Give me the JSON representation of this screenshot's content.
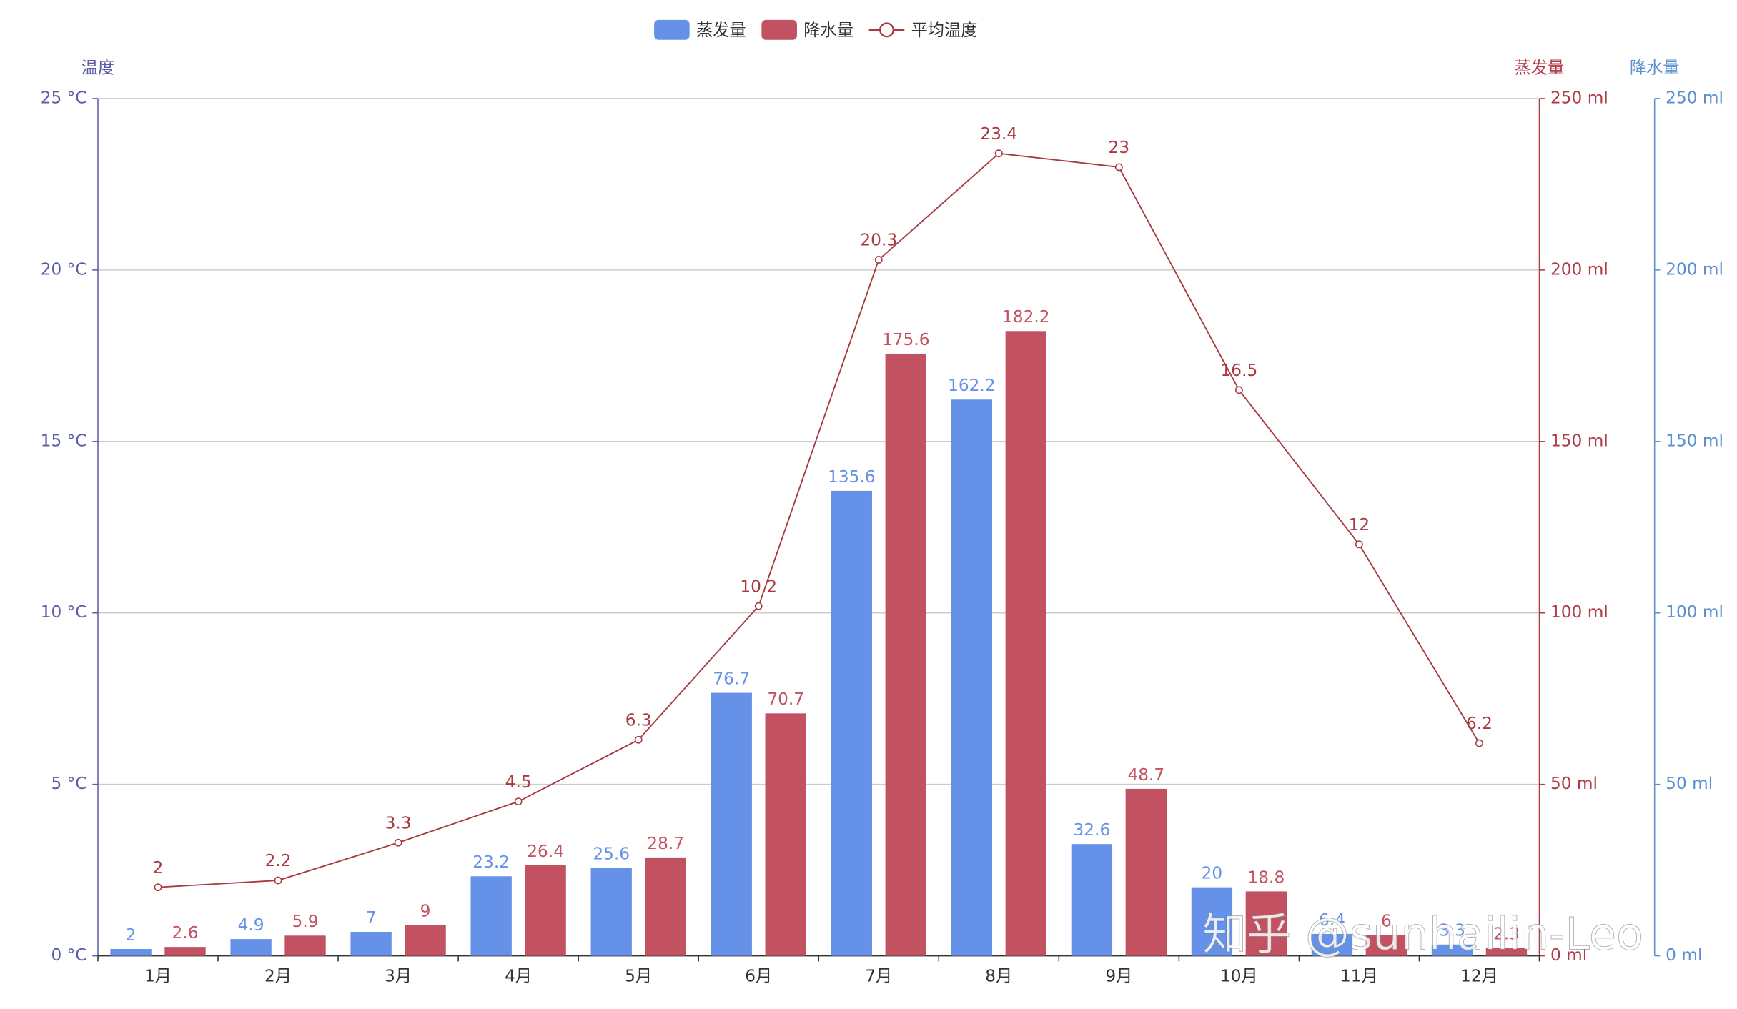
{
  "chart_data": {
    "type": "bar-line",
    "categories": [
      "1月",
      "2月",
      "3月",
      "4月",
      "5月",
      "6月",
      "7月",
      "8月",
      "9月",
      "10月",
      "11月",
      "12月"
    ],
    "series": [
      {
        "name": "蒸发量",
        "type": "bar",
        "color": "#6592e8",
        "axis": "y2",
        "values": [
          2,
          4.9,
          7,
          23.2,
          25.6,
          76.7,
          135.6,
          162.2,
          32.6,
          20,
          6.4,
          3.3
        ]
      },
      {
        "name": "降水量",
        "type": "bar",
        "color": "#c25262",
        "axis": "y2",
        "values": [
          2.6,
          5.9,
          9,
          26.4,
          28.7,
          70.7,
          175.6,
          182.2,
          48.7,
          18.8,
          6,
          2.3
        ]
      },
      {
        "name": "平均温度",
        "type": "line",
        "color": "#a8393f",
        "axis": "y",
        "values": [
          2,
          2.2,
          3.3,
          4.5,
          6.3,
          10.2,
          20.3,
          23.4,
          23,
          16.5,
          12,
          6.2
        ]
      }
    ],
    "ylabel": "温度",
    "ylim": [
      0,
      25
    ],
    "yticks": [
      {
        "value": 0,
        "label": "0 °C"
      },
      {
        "value": 5,
        "label": "5 °C"
      },
      {
        "value": 10,
        "label": "10 °C"
      },
      {
        "value": 15,
        "label": "15 °C"
      },
      {
        "value": 20,
        "label": "20 °C"
      },
      {
        "value": 25,
        "label": "25 °C"
      }
    ],
    "y2label": "蒸发量",
    "y2lim": [
      0,
      250
    ],
    "y2ticks": [
      {
        "value": 0,
        "label": "0 ml"
      },
      {
        "value": 50,
        "label": "50 ml"
      },
      {
        "value": 100,
        "label": "100 ml"
      },
      {
        "value": 150,
        "label": "150 ml"
      },
      {
        "value": 200,
        "label": "200 ml"
      },
      {
        "value": 250,
        "label": "250 ml"
      }
    ],
    "y3label": "降水量",
    "y3lim": [
      0,
      250
    ],
    "y3ticks": [
      {
        "value": 0,
        "label": "0 ml"
      },
      {
        "value": 50,
        "label": "50 ml"
      },
      {
        "value": 100,
        "label": "100 ml"
      },
      {
        "value": 150,
        "label": "150 ml"
      },
      {
        "value": 200,
        "label": "200 ml"
      },
      {
        "value": 250,
        "label": "250 ml"
      }
    ],
    "grid": true,
    "legend": "top",
    "watermark": "知乎 @sunhailin-Leo"
  }
}
